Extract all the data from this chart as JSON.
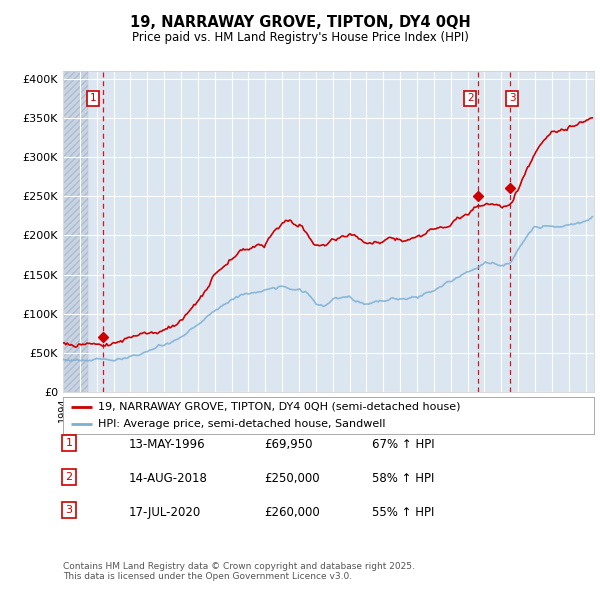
{
  "title": "19, NARRAWAY GROVE, TIPTON, DY4 0QH",
  "subtitle": "Price paid vs. HM Land Registry's House Price Index (HPI)",
  "legend_line1": "19, NARRAWAY GROVE, TIPTON, DY4 0QH (semi-detached house)",
  "legend_line2": "HPI: Average price, semi-detached house, Sandwell",
  "footer": "Contains HM Land Registry data © Crown copyright and database right 2025.\nThis data is licensed under the Open Government Licence v3.0.",
  "sale_color": "#cc0000",
  "hpi_color": "#7bafd4",
  "plot_bg_color": "#dce6f1",
  "hatch_bg_color": "#c8d4e3",
  "ylim": [
    0,
    410000
  ],
  "yticks": [
    0,
    50000,
    100000,
    150000,
    200000,
    250000,
    300000,
    350000,
    400000
  ],
  "xlim_start": 1994.0,
  "xlim_end": 2025.5,
  "hatch_end": 1995.5,
  "sales": [
    {
      "date_year": 1996.36,
      "price": 69950,
      "label": "1"
    },
    {
      "date_year": 2018.62,
      "price": 250000,
      "label": "2"
    },
    {
      "date_year": 2020.54,
      "price": 260000,
      "label": "3"
    }
  ],
  "table_rows": [
    {
      "num": "1",
      "date": "13-MAY-1996",
      "price": "£69,950",
      "hpi": "67% ↑ HPI"
    },
    {
      "num": "2",
      "date": "14-AUG-2018",
      "price": "£250,000",
      "hpi": "58% ↑ HPI"
    },
    {
      "num": "3",
      "date": "17-JUL-2020",
      "price": "£260,000",
      "hpi": "55% ↑ HPI"
    }
  ]
}
